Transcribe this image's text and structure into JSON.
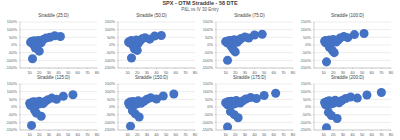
{
  "title": "SPX - OTM Straddle - 58 DTE",
  "subtitle": "P&L vs IV 30 Entry",
  "chart_data": [
    {
      "type": "scatter",
      "title": "Straddle (25:D)",
      "x": [
        11,
        12,
        13,
        13,
        14,
        15,
        15,
        16,
        17,
        18,
        19,
        20,
        22,
        24,
        27,
        31,
        36,
        42,
        13,
        16
      ],
      "values": [
        18,
        22,
        10,
        25,
        15,
        -5,
        28,
        12,
        20,
        8,
        30,
        -40,
        14,
        35,
        45,
        50,
        60,
        55,
        -90,
        -20
      ],
      "color": "#4472c4",
      "marker": "circle",
      "grid": true,
      "xlim": [
        0,
        80
      ],
      "xticks": [
        10,
        20,
        30,
        40,
        50,
        60,
        70,
        80
      ],
      "ylim": [
        -150,
        150
      ],
      "yticks": [
        {
          "value": -150,
          "label": "-150%"
        },
        {
          "value": -100,
          "label": "-100%"
        },
        {
          "value": -50,
          "label": "-50%"
        },
        {
          "value": 0,
          "label": "0%"
        },
        {
          "value": 50,
          "label": "50%"
        },
        {
          "value": 100,
          "label": "100%"
        },
        {
          "value": 150,
          "label": "150%"
        }
      ]
    },
    {
      "type": "scatter",
      "title": "Straddle (50:D)",
      "x": [
        11,
        12,
        13,
        14,
        14,
        15,
        16,
        17,
        18,
        19,
        20,
        21,
        23,
        25,
        28,
        33,
        38,
        45,
        14,
        17
      ],
      "values": [
        20,
        15,
        26,
        8,
        30,
        12,
        -8,
        22,
        17,
        32,
        -35,
        10,
        28,
        40,
        48,
        38,
        58,
        62,
        -85,
        -25
      ],
      "color": "#4472c4",
      "marker": "circle",
      "grid": true,
      "xlim": [
        0,
        80
      ],
      "xticks": [
        10,
        20,
        30,
        40,
        50,
        60,
        70,
        80
      ],
      "ylim": [
        -150,
        150
      ],
      "yticks": [
        {
          "value": -150,
          "label": "-150%"
        },
        {
          "value": -100,
          "label": "-100%"
        },
        {
          "value": -50,
          "label": "-50%"
        },
        {
          "value": 0,
          "label": "0%"
        },
        {
          "value": 50,
          "label": "50%"
        },
        {
          "value": 100,
          "label": "100%"
        },
        {
          "value": 150,
          "label": "150%"
        }
      ]
    },
    {
      "type": "scatter",
      "title": "Straddle (75:D)",
      "x": [
        10,
        12,
        13,
        13,
        15,
        15,
        16,
        17,
        18,
        19,
        20,
        22,
        24,
        26,
        30,
        34,
        40,
        48,
        12,
        18
      ],
      "values": [
        22,
        12,
        28,
        16,
        9,
        30,
        -12,
        24,
        14,
        34,
        -45,
        18,
        30,
        42,
        52,
        45,
        65,
        70,
        -100,
        -30
      ],
      "color": "#4472c4",
      "marker": "circle",
      "grid": true,
      "xlim": [
        0,
        80
      ],
      "xticks": [
        10,
        20,
        30,
        40,
        50,
        60,
        70,
        80
      ],
      "ylim": [
        -150,
        150
      ],
      "yticks": [
        {
          "value": -150,
          "label": "-150%"
        },
        {
          "value": -100,
          "label": "-100%"
        },
        {
          "value": -50,
          "label": "-50%"
        },
        {
          "value": 0,
          "label": "0%"
        },
        {
          "value": 50,
          "label": "50%"
        },
        {
          "value": 100,
          "label": "100%"
        },
        {
          "value": 150,
          "label": "150%"
        }
      ]
    },
    {
      "type": "scatter",
      "title": "Straddle (100:D)",
      "x": [
        11,
        12,
        12,
        14,
        15,
        16,
        16,
        17,
        18,
        20,
        21,
        23,
        25,
        27,
        31,
        35,
        42,
        52,
        13,
        19
      ],
      "values": [
        25,
        14,
        30,
        18,
        10,
        32,
        -15,
        26,
        16,
        36,
        -50,
        20,
        33,
        45,
        55,
        48,
        68,
        75,
        -110,
        -35
      ],
      "color": "#4472c4",
      "marker": "circle",
      "grid": true,
      "xlim": [
        0,
        80
      ],
      "xticks": [
        10,
        20,
        30,
        40,
        50,
        60,
        70,
        80
      ],
      "ylim": [
        -150,
        150
      ],
      "yticks": [
        {
          "value": -150,
          "label": "-150%"
        },
        {
          "value": -100,
          "label": "-100%"
        },
        {
          "value": -50,
          "label": "-50%"
        },
        {
          "value": 0,
          "label": "0%"
        },
        {
          "value": 50,
          "label": "50%"
        },
        {
          "value": 100,
          "label": "100%"
        },
        {
          "value": 150,
          "label": "150%"
        }
      ]
    },
    {
      "type": "scatter",
      "title": "Straddle (125:D)",
      "x": [
        10,
        11,
        13,
        14,
        15,
        15,
        16,
        18,
        19,
        20,
        22,
        24,
        26,
        29,
        33,
        38,
        45,
        55,
        12,
        17
      ],
      "values": [
        24,
        10,
        32,
        20,
        -20,
        34,
        12,
        28,
        18,
        38,
        -60,
        22,
        35,
        48,
        58,
        50,
        70,
        80,
        -120,
        -40
      ],
      "color": "#4472c4",
      "marker": "circle",
      "grid": true,
      "xlim": [
        0,
        80
      ],
      "xticks": [
        10,
        20,
        30,
        40,
        50,
        60,
        70,
        80
      ],
      "ylim": [
        -150,
        150
      ],
      "yticks": [
        {
          "value": -150,
          "label": "-150%"
        },
        {
          "value": -100,
          "label": "-100%"
        },
        {
          "value": -50,
          "label": "-50%"
        },
        {
          "value": 0,
          "label": "0%"
        },
        {
          "value": 50,
          "label": "50%"
        },
        {
          "value": 100,
          "label": "100%"
        },
        {
          "value": 150,
          "label": "150%"
        }
      ]
    },
    {
      "type": "scatter",
      "title": "Straddle (150:D)",
      "x": [
        11,
        12,
        13,
        14,
        15,
        16,
        17,
        18,
        19,
        21,
        22,
        24,
        27,
        30,
        34,
        40,
        47,
        58,
        13,
        18
      ],
      "values": [
        26,
        12,
        34,
        22,
        -25,
        36,
        14,
        30,
        20,
        40,
        -65,
        24,
        37,
        50,
        60,
        52,
        72,
        85,
        -125,
        -45
      ],
      "color": "#4472c4",
      "marker": "circle",
      "grid": true,
      "xlim": [
        0,
        80
      ],
      "xticks": [
        10,
        20,
        30,
        40,
        50,
        60,
        70,
        80
      ],
      "ylim": [
        -150,
        150
      ],
      "yticks": [
        {
          "value": -150,
          "label": "-150%"
        },
        {
          "value": -100,
          "label": "-100%"
        },
        {
          "value": -50,
          "label": "-50%"
        },
        {
          "value": 0,
          "label": "0%"
        },
        {
          "value": 50,
          "label": "50%"
        },
        {
          "value": 100,
          "label": "100%"
        },
        {
          "value": 150,
          "label": "150%"
        }
      ]
    },
    {
      "type": "scatter",
      "title": "Straddle (175:D)",
      "x": [
        10,
        12,
        13,
        14,
        15,
        16,
        17,
        18,
        20,
        21,
        23,
        25,
        28,
        31,
        36,
        42,
        50,
        62,
        12,
        19
      ],
      "values": [
        28,
        14,
        36,
        24,
        -30,
        38,
        16,
        32,
        22,
        42,
        -70,
        26,
        40,
        52,
        62,
        55,
        75,
        90,
        -130,
        -50
      ],
      "color": "#4472c4",
      "marker": "circle",
      "grid": true,
      "xlim": [
        0,
        80
      ],
      "xticks": [
        10,
        20,
        30,
        40,
        50,
        60,
        70,
        80
      ],
      "ylim": [
        -150,
        150
      ],
      "yticks": [
        {
          "value": -150,
          "label": "-150%"
        },
        {
          "value": -100,
          "label": "-100%"
        },
        {
          "value": -50,
          "label": "-50%"
        },
        {
          "value": 0,
          "label": "0%"
        },
        {
          "value": 50,
          "label": "50%"
        },
        {
          "value": 100,
          "label": "100%"
        },
        {
          "value": 150,
          "label": "150%"
        }
      ]
    },
    {
      "type": "scatter",
      "title": "Straddle (200:D)",
      "x": [
        11,
        12,
        14,
        15,
        15,
        16,
        17,
        19,
        20,
        22,
        24,
        26,
        29,
        33,
        38,
        45,
        55,
        70,
        13,
        18
      ],
      "values": [
        30,
        15,
        38,
        26,
        -35,
        40,
        18,
        34,
        24,
        44,
        -75,
        28,
        42,
        55,
        65,
        58,
        78,
        95,
        -135,
        -55
      ],
      "color": "#4472c4",
      "marker": "circle",
      "grid": true,
      "xlim": [
        0,
        80
      ],
      "xticks": [
        10,
        20,
        30,
        40,
        50,
        60,
        70,
        80
      ],
      "ylim": [
        -150,
        150
      ],
      "yticks": [
        {
          "value": -150,
          "label": "-150%"
        },
        {
          "value": -100,
          "label": "-100%"
        },
        {
          "value": -50,
          "label": "-50%"
        },
        {
          "value": 0,
          "label": "0%"
        },
        {
          "value": 50,
          "label": "50%"
        },
        {
          "value": 100,
          "label": "100%"
        },
        {
          "value": 150,
          "label": "150%"
        }
      ]
    }
  ]
}
